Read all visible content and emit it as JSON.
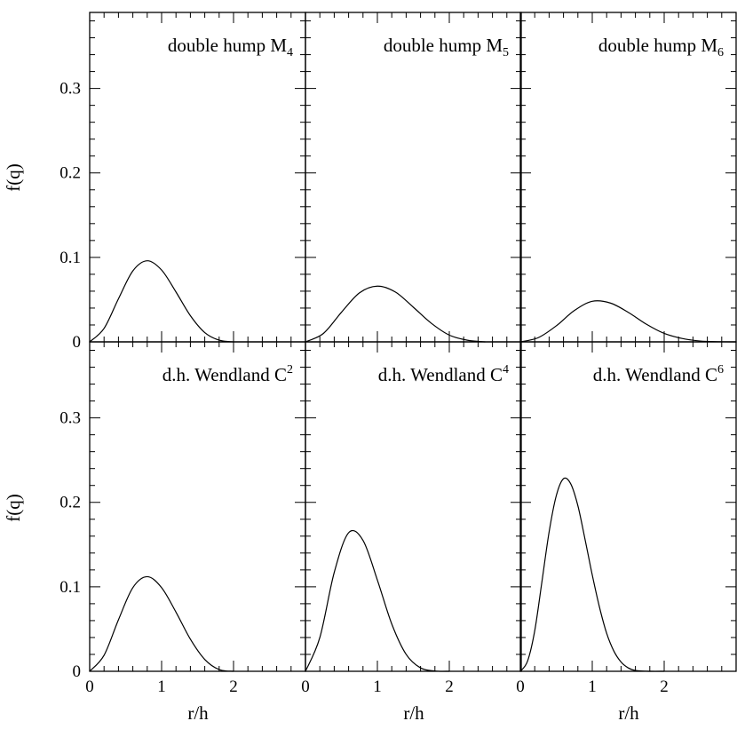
{
  "chart_data": {
    "type": "line",
    "layout": "2x3 grid of panels sharing axes",
    "ylabel": "f(q)",
    "xlabel": "r/h",
    "xlim": [
      0,
      3
    ],
    "ylim": [
      0,
      0.39
    ],
    "x_ticks": [
      0,
      1,
      2
    ],
    "y_ticks": [
      0,
      0.1,
      0.2,
      0.3
    ],
    "x_tick_labels": [
      "0",
      "1",
      "2"
    ],
    "y_tick_labels": [
      "0",
      "0.1",
      "0.2",
      "0.3"
    ],
    "grid": false,
    "panels": [
      {
        "title": "double hump M",
        "title_sub": "4",
        "title_sub_style": "subscript",
        "x": [
          0,
          0.2,
          0.4,
          0.6,
          0.8,
          1.0,
          1.2,
          1.4,
          1.6,
          1.8,
          2.0
        ],
        "y": [
          0,
          0.016,
          0.051,
          0.084,
          0.096,
          0.085,
          0.059,
          0.031,
          0.011,
          0.002,
          0
        ]
      },
      {
        "title": "double hump M",
        "title_sub": "5",
        "title_sub_style": "subscript",
        "x": [
          0,
          0.25,
          0.5,
          0.75,
          1.0,
          1.25,
          1.5,
          1.75,
          2.0,
          2.25,
          2.5
        ],
        "y": [
          0,
          0.01,
          0.035,
          0.058,
          0.066,
          0.059,
          0.041,
          0.022,
          0.008,
          0.002,
          0
        ]
      },
      {
        "title": "double hump M",
        "title_sub": "6",
        "title_sub_style": "subscript",
        "x": [
          0,
          0.25,
          0.5,
          0.75,
          1.0,
          1.25,
          1.5,
          1.75,
          2.0,
          2.25,
          2.5,
          2.75,
          3.0
        ],
        "y": [
          0,
          0.005,
          0.019,
          0.037,
          0.048,
          0.046,
          0.035,
          0.021,
          0.01,
          0.004,
          0.001,
          0.0002,
          0
        ]
      },
      {
        "title": "d.h. Wendland C",
        "title_sub": "2",
        "title_sub_style": "superscript",
        "x": [
          0,
          0.2,
          0.4,
          0.6,
          0.8,
          1.0,
          1.2,
          1.4,
          1.6,
          1.8,
          2.0
        ],
        "y": [
          0,
          0.019,
          0.061,
          0.099,
          0.112,
          0.099,
          0.07,
          0.038,
          0.014,
          0.002,
          0
        ]
      },
      {
        "title": "d.h. Wendland C",
        "title_sub": "4",
        "title_sub_style": "superscript",
        "x": [
          0,
          0.2,
          0.4,
          0.6,
          0.8,
          1.0,
          1.2,
          1.4,
          1.6,
          1.8,
          2.0
        ],
        "y": [
          0,
          0.04,
          0.117,
          0.164,
          0.155,
          0.108,
          0.056,
          0.02,
          0.004,
          0.0003,
          0
        ]
      },
      {
        "title": "d.h. Wendland C",
        "title_sub": "6",
        "title_sub_style": "superscript",
        "x": [
          0,
          0.1,
          0.2,
          0.3,
          0.4,
          0.5,
          0.6,
          0.7,
          0.8,
          0.9,
          1.0,
          1.1,
          1.2,
          1.3,
          1.4,
          1.5,
          1.6,
          1.8,
          2.0
        ],
        "y": [
          0,
          0.012,
          0.048,
          0.106,
          0.165,
          0.208,
          0.228,
          0.222,
          0.196,
          0.156,
          0.114,
          0.076,
          0.045,
          0.024,
          0.011,
          0.004,
          0.001,
          0,
          0
        ]
      }
    ]
  }
}
